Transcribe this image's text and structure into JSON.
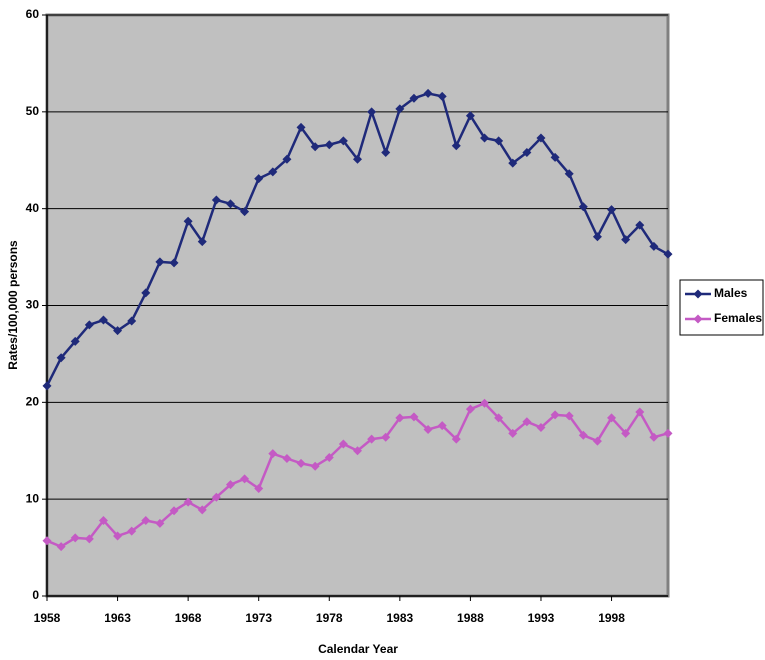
{
  "chart_data": {
    "type": "line",
    "x_label": "Calendar Year",
    "y_label": "Rates/100,000 persons",
    "x": [
      1958,
      1959,
      1960,
      1961,
      1962,
      1963,
      1964,
      1965,
      1966,
      1967,
      1968,
      1969,
      1970,
      1971,
      1972,
      1973,
      1974,
      1975,
      1976,
      1977,
      1978,
      1979,
      1980,
      1981,
      1982,
      1983,
      1984,
      1985,
      1986,
      1987,
      1988,
      1989,
      1990,
      1991,
      1992,
      1993,
      1994,
      1995,
      1996,
      1997,
      1998,
      1999,
      2000,
      2001,
      2002
    ],
    "series": [
      {
        "name": "Males",
        "color": "#1f2a7a",
        "values": [
          21.7,
          24.6,
          26.3,
          28.0,
          28.5,
          27.4,
          28.4,
          31.3,
          34.5,
          34.4,
          38.7,
          36.6,
          40.9,
          40.5,
          39.7,
          43.1,
          43.8,
          45.1,
          48.4,
          46.4,
          46.6,
          47.0,
          45.1,
          50.0,
          45.8,
          50.3,
          51.4,
          51.9,
          51.6,
          46.5,
          49.6,
          47.3,
          47.0,
          44.7,
          45.8,
          47.3,
          45.3,
          43.6,
          40.2,
          37.1,
          39.9,
          36.8,
          38.3,
          36.1,
          35.3
        ]
      },
      {
        "name": "Females",
        "color": "#c45ac4",
        "values": [
          5.7,
          5.1,
          6.0,
          5.9,
          7.8,
          6.2,
          6.7,
          7.8,
          7.5,
          8.8,
          9.7,
          8.9,
          10.2,
          11.5,
          12.1,
          11.1,
          14.7,
          14.2,
          13.7,
          13.4,
          14.3,
          15.7,
          15.0,
          16.2,
          16.4,
          18.4,
          18.5,
          17.2,
          17.6,
          16.2,
          19.3,
          19.9,
          18.4,
          16.8,
          18.0,
          17.4,
          18.7,
          18.6,
          16.6,
          16.0,
          18.4,
          16.8,
          19.0,
          16.4,
          16.8
        ]
      }
    ],
    "xlim": [
      1958,
      2002
    ],
    "xticks": [
      1958,
      1963,
      1968,
      1973,
      1978,
      1983,
      1988,
      1993,
      1998
    ],
    "ylim": [
      0,
      60
    ],
    "yticks": [
      0,
      10,
      20,
      30,
      40,
      50,
      60
    ],
    "grid": true,
    "plot_background": "#c0c0c0",
    "legend": "right"
  }
}
